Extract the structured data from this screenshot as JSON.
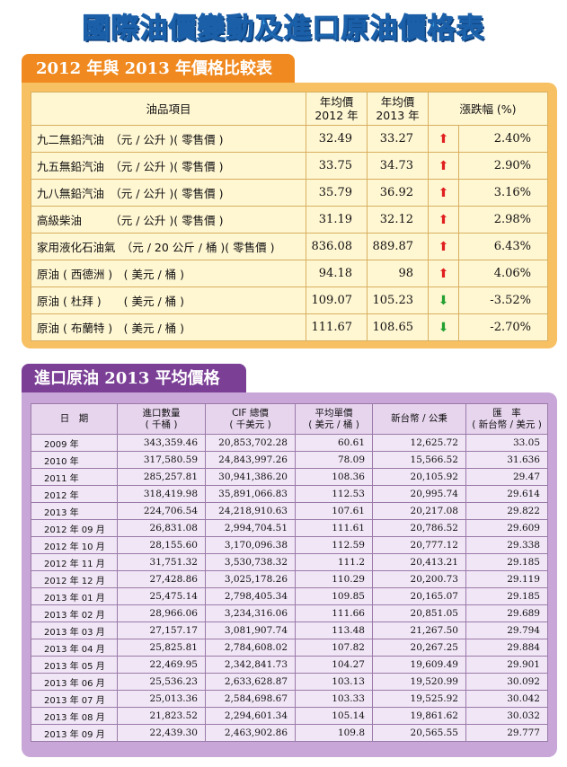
{
  "title": "國際油價變動及進口原油價格表",
  "section1": {
    "heading": "2012 年與 2013 年價格比較表",
    "headers": {
      "item": "油品項目",
      "y2012_line1": "年均價",
      "y2012_line2": "2012 年",
      "y2013_line1": "年均價",
      "y2013_line2": "2013 年",
      "change": "漲跌幅 (%)"
    },
    "rows": [
      {
        "name": "九二無鉛汽油　（元 / 公升 )( 零售價 )",
        "y2012": "32.49",
        "y2013": "33.27",
        "dir": "up",
        "arrow": "⬆",
        "pct": "2.40%"
      },
      {
        "name": "九五無鉛汽油　（元 / 公升 )( 零售價 )",
        "y2012": "33.75",
        "y2013": "34.73",
        "dir": "up",
        "arrow": "⬆",
        "pct": "2.90%"
      },
      {
        "name": "九八無鉛汽油　（元 / 公升 )( 零售價 )",
        "y2012": "35.79",
        "y2013": "36.92",
        "dir": "up",
        "arrow": "⬆",
        "pct": "3.16%"
      },
      {
        "name": "高級柴油　　　（元 / 公升 )( 零售價 )",
        "y2012": "31.19",
        "y2013": "32.12",
        "dir": "up",
        "arrow": "⬆",
        "pct": "2.98%"
      },
      {
        "name": "家用液化石油氣　（元 / 20 公斤 / 桶 )( 零售價 )",
        "y2012": "836.08",
        "y2013": "889.87",
        "dir": "up",
        "arrow": "⬆",
        "pct": "6.43%"
      },
      {
        "name": "原油 ( 西德洲 )　( 美元 / 桶 )",
        "y2012": "94.18",
        "y2013": "98",
        "dir": "up",
        "arrow": "⬆",
        "pct": "4.06%"
      },
      {
        "name": "原油 ( 杜拜 )　　( 美元 / 桶 )",
        "y2012": "109.07",
        "y2013": "105.23",
        "dir": "down",
        "arrow": "⬇",
        "pct": "-3.52%"
      },
      {
        "name": "原油 ( 布蘭特 )　( 美元 / 桶 )",
        "y2012": "111.67",
        "y2013": "108.65",
        "dir": "down",
        "arrow": "⬇",
        "pct": "-2.70%"
      }
    ]
  },
  "section2": {
    "heading": "進口原油 2013 平均價格",
    "headers": {
      "date": "日　期",
      "qty_line1": "進口數量",
      "qty_line2": "( 千桶 )",
      "cif_line1": "CIF 總價",
      "cif_line2": "( 千美元 )",
      "avg_line1": "平均單價",
      "avg_line2": "( 美元 / 桶 )",
      "ntd": "新台幣 / 公秉",
      "rate_line1": "匯　率",
      "rate_line2": "( 新台幣 / 美元 )"
    },
    "rows": [
      {
        "date": "2009 年",
        "qty": "343,359.46",
        "cif": "20,853,702.28",
        "avg": "60.61",
        "ntd": "12,625.72",
        "rate": "33.05"
      },
      {
        "date": "2010 年",
        "qty": "317,580.59",
        "cif": "24,843,997.26",
        "avg": "78.09",
        "ntd": "15,566.52",
        "rate": "31.636"
      },
      {
        "date": "2011 年",
        "qty": "285,257.81",
        "cif": "30,941,386.20",
        "avg": "108.36",
        "ntd": "20,105.92",
        "rate": "29.47"
      },
      {
        "date": "2012 年",
        "qty": "318,419.98",
        "cif": "35,891,066.83",
        "avg": "112.53",
        "ntd": "20,995.74",
        "rate": "29.614"
      },
      {
        "date": "2013 年",
        "qty": "224,706.54",
        "cif": "24,218,910.63",
        "avg": "107.61",
        "ntd": "20,217.08",
        "rate": "29.822"
      },
      {
        "date": "2012 年 09 月",
        "qty": "26,831.08",
        "cif": "2,994,704.51",
        "avg": "111.61",
        "ntd": "20,786.52",
        "rate": "29.609"
      },
      {
        "date": "2012 年 10 月",
        "qty": "28,155.60",
        "cif": "3,170,096.38",
        "avg": "112.59",
        "ntd": "20,777.12",
        "rate": "29.338"
      },
      {
        "date": "2012 年 11 月",
        "qty": "31,751.32",
        "cif": "3,530,738.32",
        "avg": "111.2",
        "ntd": "20,413.21",
        "rate": "29.185"
      },
      {
        "date": "2012 年 12 月",
        "qty": "27,428.86",
        "cif": "3,025,178.26",
        "avg": "110.29",
        "ntd": "20,200.73",
        "rate": "29.119"
      },
      {
        "date": "2013 年 01 月",
        "qty": "25,475.14",
        "cif": "2,798,405.34",
        "avg": "109.85",
        "ntd": "20,165.07",
        "rate": "29.185"
      },
      {
        "date": "2013 年 02 月",
        "qty": "28,966.06",
        "cif": "3,234,316.06",
        "avg": "111.66",
        "ntd": "20,851.05",
        "rate": "29.689"
      },
      {
        "date": "2013 年 03 月",
        "qty": "27,157.17",
        "cif": "3,081,907.74",
        "avg": "113.48",
        "ntd": "21,267.50",
        "rate": "29.794"
      },
      {
        "date": "2013 年 04 月",
        "qty": "25,825.81",
        "cif": "2,784,608.02",
        "avg": "107.82",
        "ntd": "20,267.25",
        "rate": "29.884"
      },
      {
        "date": "2013 年 05 月",
        "qty": "22,469.95",
        "cif": "2,342,841.73",
        "avg": "104.27",
        "ntd": "19,609.49",
        "rate": "29.901"
      },
      {
        "date": "2013 年 06 月",
        "qty": "25,536.23",
        "cif": "2,633,628.87",
        "avg": "103.13",
        "ntd": "19,520.99",
        "rate": "30.092"
      },
      {
        "date": "2013 年 07 月",
        "qty": "25,013.36",
        "cif": "2,584,698.67",
        "avg": "103.33",
        "ntd": "19,525.92",
        "rate": "30.042"
      },
      {
        "date": "2013 年 08 月",
        "qty": "21,823.52",
        "cif": "2,294,601.34",
        "avg": "105.14",
        "ntd": "19,861.62",
        "rate": "30.032"
      },
      {
        "date": "2013 年 09 月",
        "qty": "22,439.30",
        "cif": "2,463,902.86",
        "avg": "109.8",
        "ntd": "20,565.55",
        "rate": "29.777"
      }
    ]
  },
  "colors": {
    "title": "#3aa6ea",
    "section1_accent": "#f08a20",
    "section2_accent": "#7b3f96",
    "arrow_up": "#e02020",
    "arrow_down": "#22a030"
  },
  "icons": {
    "up": "arrow-up-icon",
    "down": "arrow-down-icon"
  }
}
